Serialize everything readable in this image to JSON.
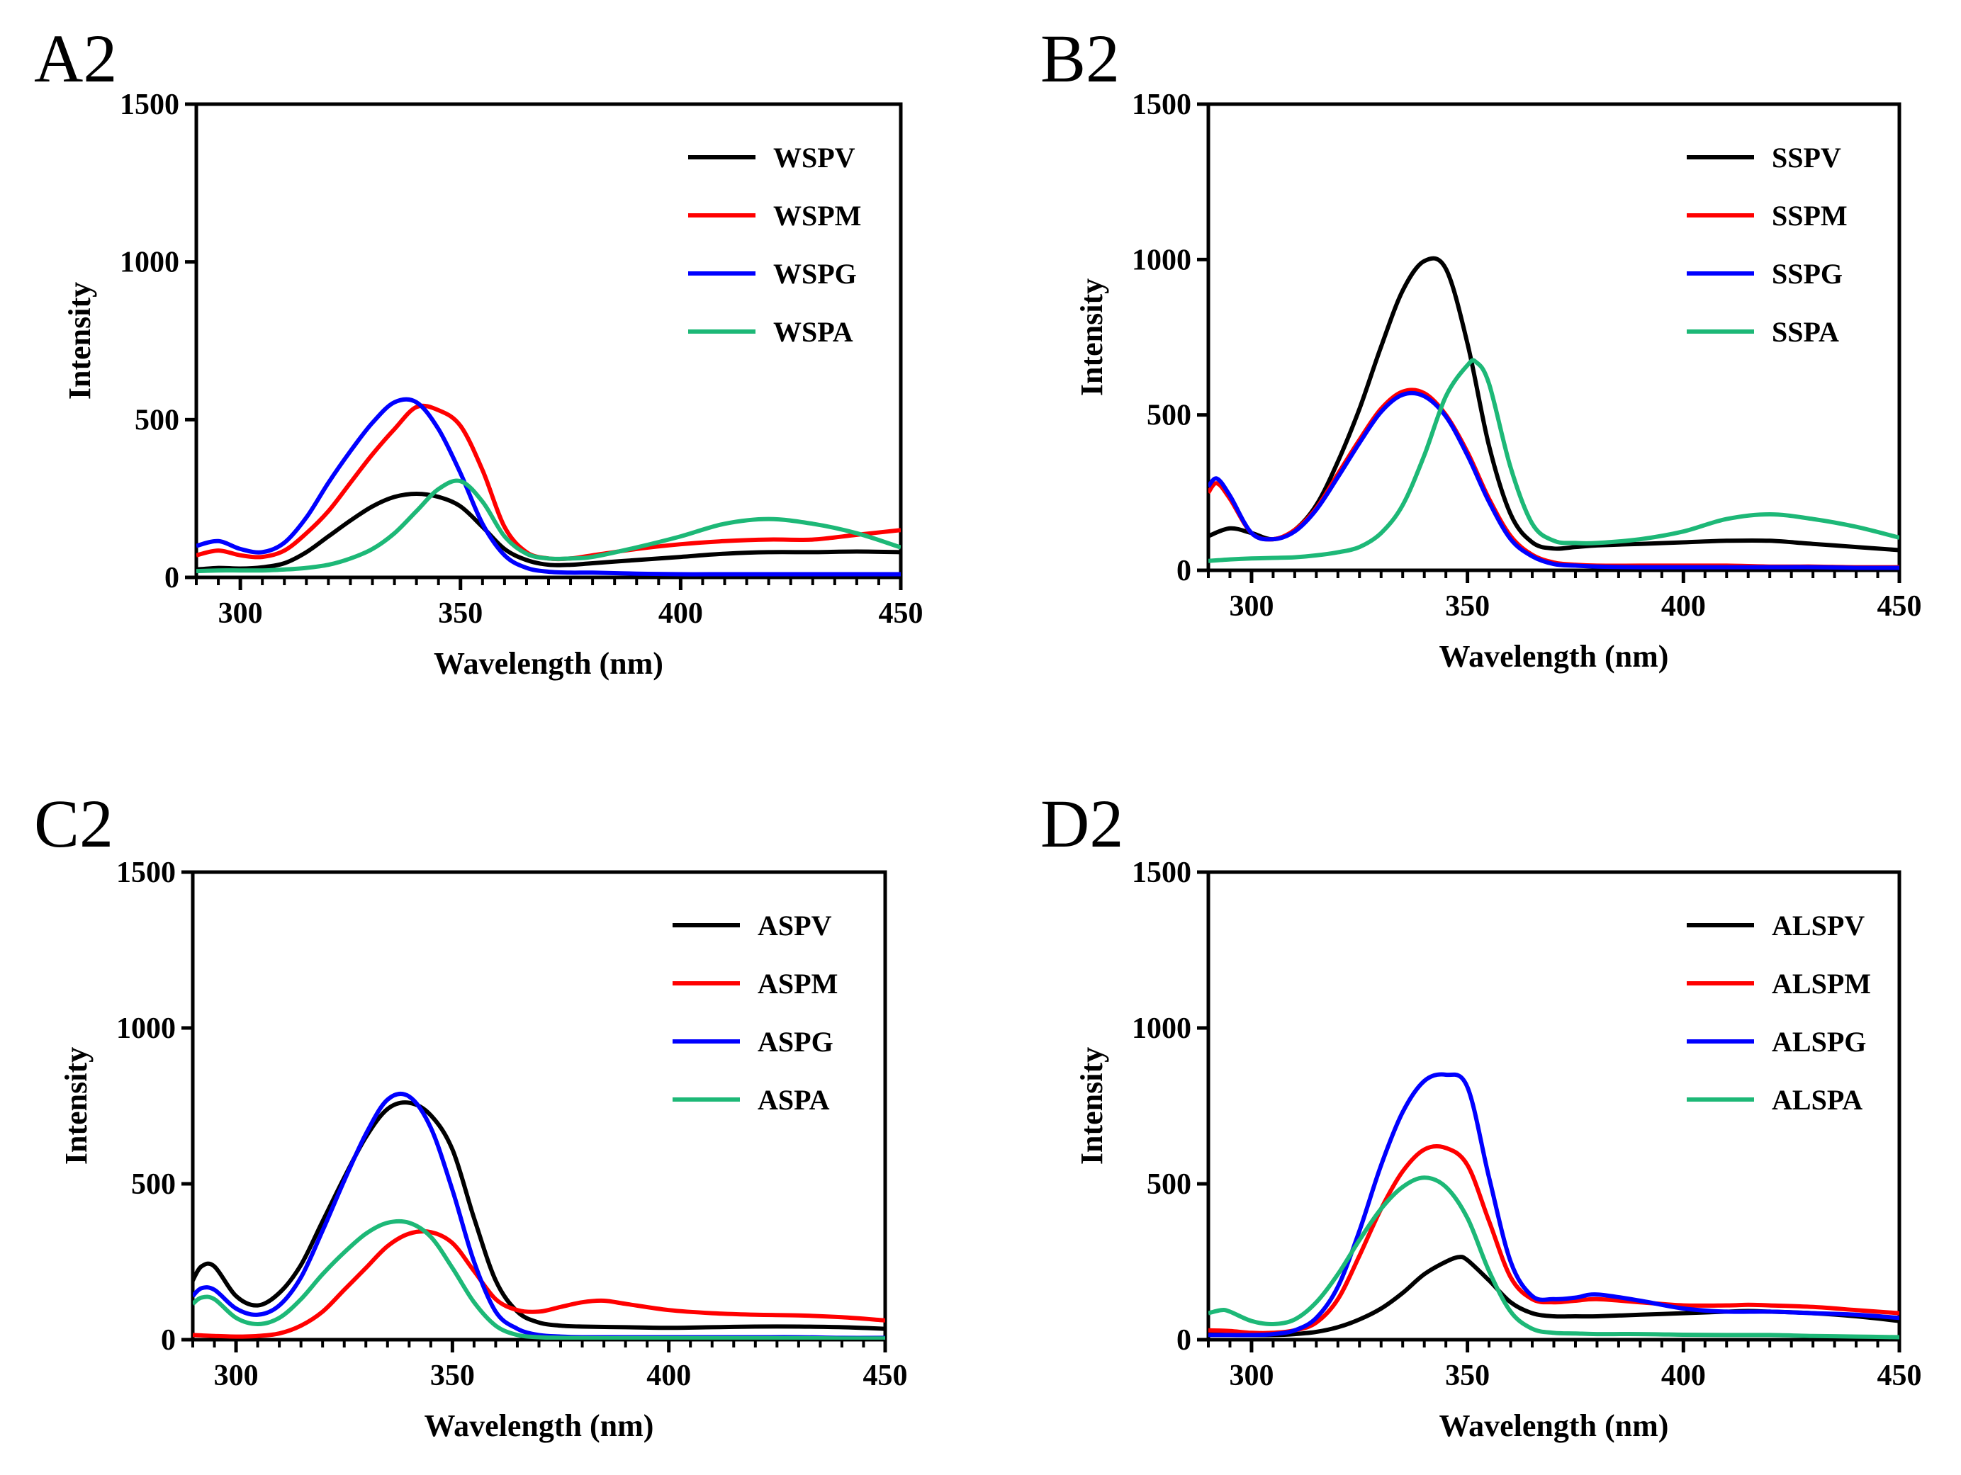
{
  "chart_data": [
    {
      "panel": "A2",
      "type": "line",
      "xlabel": "Wavelength (nm)",
      "ylabel": "Intensity",
      "xlim": [
        290,
        450
      ],
      "ylim": [
        0,
        1500
      ],
      "xticks": [
        300,
        350,
        400,
        450
      ],
      "yticks": [
        0,
        500,
        1000,
        1500
      ],
      "legend_position": "top-right",
      "series": [
        {
          "name": "WSPV",
          "color": "#000000",
          "x": [
            290,
            295,
            300,
            305,
            310,
            315,
            320,
            325,
            330,
            335,
            340,
            345,
            350,
            355,
            360,
            365,
            370,
            375,
            380,
            390,
            400,
            410,
            420,
            430,
            440,
            450
          ],
          "y": [
            25,
            30,
            28,
            32,
            45,
            80,
            130,
            180,
            225,
            255,
            265,
            255,
            225,
            160,
            90,
            55,
            40,
            40,
            45,
            55,
            65,
            75,
            80,
            80,
            82,
            80
          ]
        },
        {
          "name": "WSPM",
          "color": "#ff0000",
          "x": [
            290,
            295,
            300,
            305,
            310,
            315,
            320,
            325,
            330,
            335,
            340,
            345,
            350,
            355,
            360,
            365,
            370,
            375,
            380,
            390,
            400,
            410,
            420,
            430,
            440,
            450
          ],
          "y": [
            70,
            85,
            70,
            65,
            85,
            140,
            210,
            300,
            390,
            470,
            540,
            530,
            480,
            340,
            160,
            80,
            60,
            60,
            70,
            90,
            105,
            115,
            120,
            120,
            135,
            150
          ]
        },
        {
          "name": "WSPG",
          "color": "#0000ff",
          "x": [
            290,
            295,
            300,
            305,
            310,
            315,
            320,
            325,
            330,
            335,
            340,
            345,
            350,
            355,
            360,
            365,
            370,
            375,
            380,
            390,
            400,
            410,
            420,
            430,
            440,
            450
          ],
          "y": [
            100,
            115,
            90,
            80,
            110,
            190,
            300,
            400,
            490,
            555,
            555,
            470,
            330,
            170,
            70,
            30,
            18,
            15,
            15,
            12,
            10,
            10,
            10,
            10,
            10,
            10
          ]
        },
        {
          "name": "WSPA",
          "color": "#1db877",
          "x": [
            290,
            295,
            300,
            305,
            310,
            315,
            320,
            325,
            330,
            335,
            340,
            345,
            350,
            355,
            360,
            365,
            370,
            375,
            380,
            390,
            400,
            410,
            420,
            430,
            440,
            450
          ],
          "y": [
            20,
            22,
            22,
            22,
            25,
            30,
            40,
            60,
            90,
            140,
            210,
            280,
            305,
            240,
            130,
            75,
            60,
            60,
            65,
            95,
            130,
            170,
            185,
            170,
            140,
            95
          ]
        }
      ]
    },
    {
      "panel": "B2",
      "type": "line",
      "xlabel": "Wavelength (nm)",
      "ylabel": "Intensity",
      "xlim": [
        290,
        450
      ],
      "ylim": [
        0,
        1500
      ],
      "xticks": [
        300,
        350,
        400,
        450
      ],
      "yticks": [
        0,
        500,
        1000,
        1500
      ],
      "legend_position": "top-right",
      "series": [
        {
          "name": "SSPV",
          "color": "#000000",
          "x": [
            290,
            295,
            300,
            305,
            310,
            315,
            320,
            325,
            330,
            335,
            340,
            345,
            350,
            355,
            360,
            365,
            370,
            375,
            380,
            390,
            400,
            410,
            420,
            430,
            440,
            450
          ],
          "y": [
            110,
            135,
            120,
            100,
            130,
            210,
            350,
            520,
            720,
            900,
            995,
            970,
            730,
            400,
            180,
            90,
            70,
            75,
            80,
            85,
            90,
            95,
            95,
            85,
            75,
            65
          ]
        },
        {
          "name": "SSPM",
          "color": "#ff0000",
          "x": [
            290,
            292,
            295,
            300,
            305,
            310,
            315,
            320,
            325,
            330,
            335,
            340,
            345,
            350,
            355,
            360,
            365,
            370,
            375,
            380,
            390,
            400,
            410,
            420,
            430,
            440,
            450
          ],
          "y": [
            250,
            280,
            230,
            120,
            100,
            130,
            200,
            310,
            420,
            520,
            575,
            570,
            500,
            380,
            230,
            110,
            50,
            25,
            18,
            15,
            15,
            15,
            15,
            12,
            12,
            10,
            10
          ]
        },
        {
          "name": "SSPG",
          "color": "#0000ff",
          "x": [
            290,
            292,
            295,
            300,
            305,
            310,
            315,
            320,
            325,
            330,
            335,
            340,
            345,
            350,
            355,
            360,
            365,
            370,
            375,
            380,
            390,
            400,
            410,
            420,
            430,
            440,
            450
          ],
          "y": [
            270,
            295,
            240,
            120,
            100,
            125,
            195,
            300,
            410,
            510,
            565,
            560,
            495,
            370,
            220,
            100,
            45,
            20,
            15,
            12,
            10,
            10,
            10,
            10,
            10,
            8,
            8
          ]
        },
        {
          "name": "SSPA",
          "color": "#1db877",
          "x": [
            290,
            295,
            300,
            305,
            310,
            315,
            320,
            325,
            330,
            335,
            340,
            345,
            350,
            352,
            355,
            360,
            365,
            370,
            375,
            380,
            390,
            400,
            410,
            420,
            430,
            440,
            450
          ],
          "y": [
            30,
            35,
            38,
            40,
            42,
            48,
            58,
            75,
            120,
            210,
            370,
            560,
            660,
            670,
            600,
            330,
            150,
            95,
            88,
            88,
            100,
            125,
            165,
            180,
            165,
            140,
            105
          ]
        }
      ]
    },
    {
      "panel": "C2",
      "type": "line",
      "xlabel": "Wavelength (nm)",
      "ylabel": "Intensity",
      "xlim": [
        290,
        450
      ],
      "ylim": [
        0,
        1500
      ],
      "xticks": [
        300,
        350,
        400,
        450
      ],
      "yticks": [
        0,
        500,
        1000,
        1500
      ],
      "legend_position": "top-right",
      "series": [
        {
          "name": "ASPV",
          "color": "#000000",
          "x": [
            290,
            292,
            295,
            300,
            305,
            310,
            315,
            320,
            325,
            330,
            335,
            340,
            345,
            350,
            355,
            360,
            365,
            370,
            375,
            380,
            390,
            400,
            410,
            420,
            430,
            440,
            450
          ],
          "y": [
            190,
            235,
            235,
            140,
            110,
            150,
            240,
            380,
            520,
            650,
            740,
            760,
            720,
            610,
            390,
            190,
            90,
            55,
            45,
            42,
            40,
            38,
            40,
            42,
            42,
            40,
            35
          ]
        },
        {
          "name": "ASPM",
          "color": "#ff0000",
          "x": [
            290,
            295,
            300,
            305,
            310,
            315,
            320,
            325,
            330,
            335,
            340,
            345,
            350,
            355,
            360,
            365,
            370,
            375,
            380,
            385,
            390,
            400,
            410,
            420,
            430,
            440,
            450
          ],
          "y": [
            15,
            12,
            10,
            12,
            20,
            45,
            90,
            160,
            230,
            300,
            340,
            345,
            310,
            220,
            130,
            95,
            90,
            105,
            120,
            125,
            115,
            95,
            85,
            80,
            78,
            72,
            62
          ]
        },
        {
          "name": "ASPG",
          "color": "#0000ff",
          "x": [
            290,
            292,
            295,
            300,
            305,
            310,
            315,
            320,
            325,
            330,
            335,
            340,
            345,
            350,
            355,
            360,
            365,
            370,
            375,
            380,
            390,
            400,
            410,
            420,
            430,
            440,
            450
          ],
          "y": [
            140,
            165,
            160,
            100,
            80,
            110,
            200,
            350,
            510,
            660,
            770,
            780,
            680,
            480,
            250,
            90,
            35,
            15,
            10,
            8,
            8,
            8,
            8,
            8,
            8,
            6,
            6
          ]
        },
        {
          "name": "ASPA",
          "color": "#1db877",
          "x": [
            290,
            292,
            295,
            300,
            305,
            310,
            315,
            320,
            325,
            330,
            335,
            340,
            345,
            350,
            355,
            360,
            365,
            370,
            375,
            380,
            390,
            400,
            410,
            420,
            430,
            440,
            450
          ],
          "y": [
            115,
            135,
            130,
            70,
            50,
            70,
            130,
            210,
            280,
            340,
            375,
            375,
            330,
            230,
            120,
            45,
            15,
            8,
            6,
            5,
            5,
            5,
            5,
            5,
            5,
            4,
            4
          ]
        }
      ]
    },
    {
      "panel": "D2",
      "type": "line",
      "xlabel": "Wavelength (nm)",
      "ylabel": "Intensity",
      "xlim": [
        290,
        450
      ],
      "ylim": [
        0,
        1500
      ],
      "xticks": [
        300,
        350,
        400,
        450
      ],
      "yticks": [
        0,
        500,
        1000,
        1500
      ],
      "legend_position": "top-right",
      "series": [
        {
          "name": "ALSPV",
          "color": "#000000",
          "x": [
            290,
            295,
            300,
            305,
            310,
            315,
            320,
            325,
            330,
            335,
            340,
            345,
            348,
            350,
            355,
            360,
            365,
            370,
            375,
            380,
            390,
            400,
            410,
            415,
            420,
            430,
            440,
            450
          ],
          "y": [
            20,
            18,
            15,
            15,
            18,
            25,
            40,
            65,
            100,
            150,
            210,
            250,
            265,
            255,
            190,
            120,
            85,
            75,
            75,
            75,
            80,
            85,
            90,
            92,
            90,
            85,
            75,
            60
          ]
        },
        {
          "name": "ALSPM",
          "color": "#ff0000",
          "x": [
            290,
            295,
            300,
            305,
            310,
            315,
            320,
            325,
            330,
            335,
            340,
            345,
            350,
            355,
            360,
            365,
            370,
            375,
            380,
            390,
            400,
            410,
            415,
            420,
            430,
            440,
            450
          ],
          "y": [
            30,
            28,
            22,
            22,
            30,
            55,
            130,
            270,
            420,
            540,
            610,
            615,
            560,
            380,
            200,
            130,
            120,
            125,
            130,
            120,
            110,
            110,
            112,
            110,
            105,
            95,
            85
          ]
        },
        {
          "name": "ALSPG",
          "color": "#0000ff",
          "x": [
            290,
            295,
            300,
            305,
            310,
            315,
            320,
            325,
            330,
            335,
            340,
            345,
            350,
            355,
            360,
            365,
            370,
            375,
            380,
            390,
            400,
            410,
            420,
            430,
            440,
            450
          ],
          "y": [
            15,
            15,
            15,
            18,
            30,
            70,
            170,
            350,
            560,
            730,
            830,
            850,
            810,
            520,
            250,
            140,
            130,
            135,
            145,
            125,
            100,
            90,
            90,
            85,
            80,
            70
          ]
        },
        {
          "name": "ALSPA",
          "color": "#1db877",
          "x": [
            290,
            293,
            295,
            300,
            305,
            310,
            315,
            320,
            325,
            330,
            335,
            340,
            345,
            350,
            355,
            360,
            365,
            370,
            375,
            380,
            390,
            400,
            410,
            420,
            430,
            440,
            450
          ],
          "y": [
            85,
            95,
            90,
            60,
            50,
            65,
            120,
            210,
            320,
            420,
            490,
            520,
            490,
            390,
            220,
            90,
            35,
            22,
            20,
            18,
            18,
            16,
            15,
            15,
            12,
            10,
            8
          ]
        }
      ]
    }
  ]
}
